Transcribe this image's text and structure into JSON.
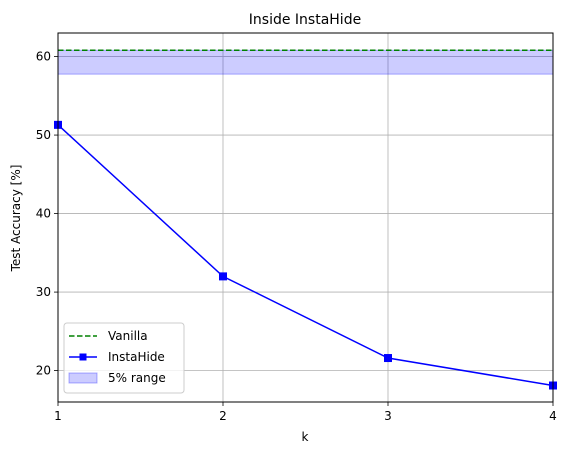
{
  "chart_data": {
    "type": "line",
    "title": "Inside InstaHide",
    "xlabel": "k",
    "ylabel": "Test Accuracy [%]",
    "xlim": [
      1,
      4
    ],
    "ylim": [
      16,
      63
    ],
    "xticks": [
      1,
      2,
      3,
      4
    ],
    "yticks": [
      20,
      30,
      40,
      50,
      60
    ],
    "grid": true,
    "legend_position": "lower-left",
    "series": [
      {
        "name": "Vanilla",
        "style": "dashed",
        "color": "#008000",
        "x": [
          1,
          4
        ],
        "y": [
          60.8,
          60.8
        ]
      },
      {
        "name": "InstaHide",
        "style": "solid",
        "marker": "square",
        "color": "#0000ff",
        "x": [
          1,
          2,
          3,
          4
        ],
        "y": [
          51.3,
          32.0,
          21.6,
          18.1
        ]
      }
    ],
    "band": {
      "name": "5% range",
      "color": "#0000ff",
      "opacity": 0.2,
      "y_low": 57.76,
      "y_high": 60.8
    }
  }
}
